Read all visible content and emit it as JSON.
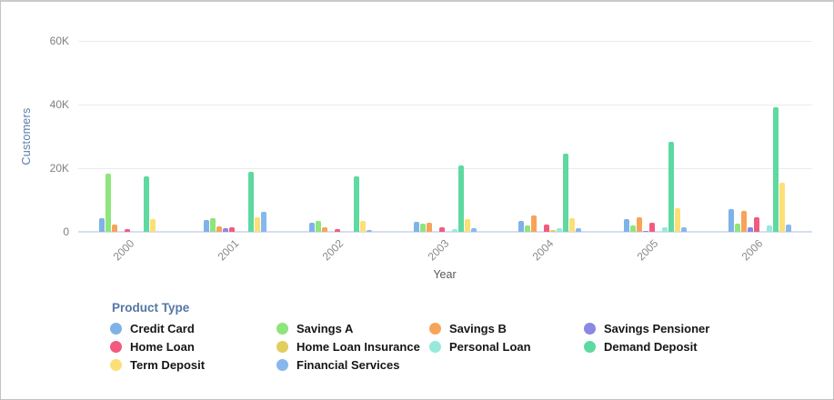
{
  "chart_data": {
    "type": "bar",
    "title": "",
    "xlabel": "Year",
    "ylabel": "Customers",
    "ylim": [
      0,
      60000
    ],
    "grid": true,
    "legend_position": "bottom",
    "legend_title": "Product Type",
    "yticks": [
      {
        "value": 0,
        "label": "0"
      },
      {
        "value": 20000,
        "label": "20K"
      },
      {
        "value": 40000,
        "label": "40K"
      },
      {
        "value": 60000,
        "label": "60K"
      }
    ],
    "categories": [
      "2000",
      "2001",
      "2002",
      "2003",
      "2004",
      "2005",
      "2006"
    ],
    "series": [
      {
        "name": "Credit Card",
        "color": "#7FB3E8",
        "values": [
          4400,
          3700,
          2900,
          3100,
          3400,
          4000,
          7100
        ]
      },
      {
        "name": "Savings A",
        "color": "#8DE57C",
        "values": [
          18200,
          4300,
          3400,
          2600,
          2000,
          2000,
          2600
        ]
      },
      {
        "name": "Savings B",
        "color": "#F7A45A",
        "values": [
          2300,
          1700,
          1400,
          2900,
          5100,
          4600,
          6600
        ]
      },
      {
        "name": "Savings Pensioner",
        "color": "#8A88E0",
        "values": [
          0,
          1100,
          0,
          0,
          0,
          300,
          1400
        ]
      },
      {
        "name": "Home Loan",
        "color": "#F25A7E",
        "values": [
          800,
          1400,
          900,
          1400,
          2300,
          2900,
          4600
        ]
      },
      {
        "name": "Home Loan Insurance",
        "color": "#E0CE5E",
        "values": [
          0,
          0,
          0,
          0,
          500,
          0,
          0
        ]
      },
      {
        "name": "Personal Loan",
        "color": "#96E9DB",
        "values": [
          0,
          0,
          0,
          900,
          1100,
          1400,
          2000
        ]
      },
      {
        "name": "Demand Deposit",
        "color": "#5EDAA1",
        "values": [
          17400,
          18900,
          17400,
          20800,
          24600,
          28300,
          39100
        ]
      },
      {
        "name": "Term Deposit",
        "color": "#FCDF76",
        "values": [
          3900,
          4600,
          3400,
          4000,
          4300,
          7400,
          15400
        ]
      },
      {
        "name": "Financial Services",
        "color": "#86B8ED",
        "values": [
          0,
          6300,
          600,
          1100,
          1100,
          1400,
          2300
        ]
      }
    ]
  }
}
